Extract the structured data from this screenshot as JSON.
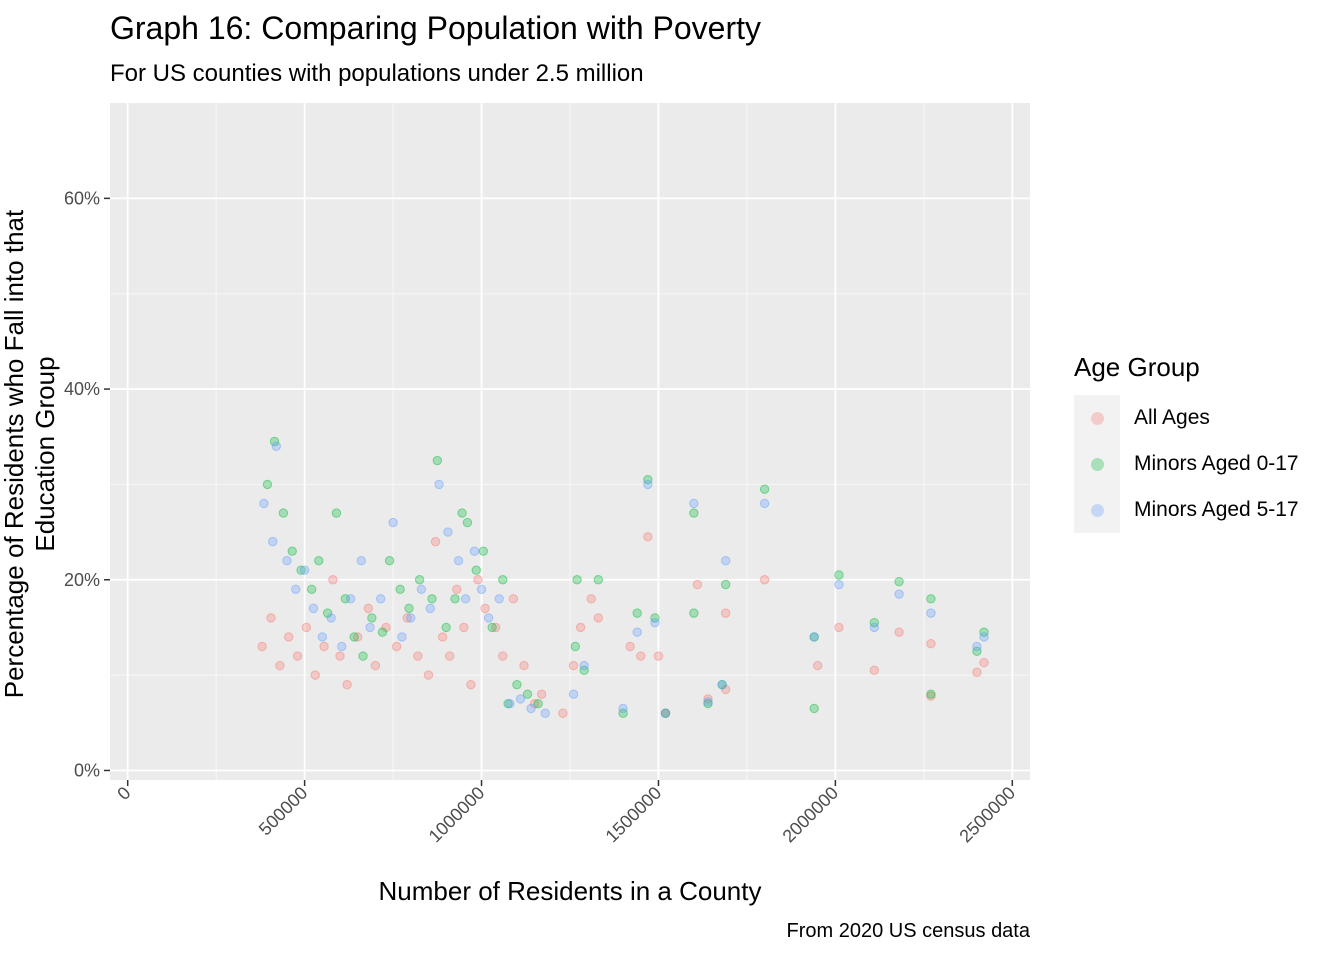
{
  "chart_data": {
    "type": "scatter",
    "title": "Graph 16: Comparing Population with Poverty",
    "subtitle": "For US counties with populations under 2.5 million",
    "xlabel": "Number of Residents in a County",
    "ylabel": "Percentage of Residents who Fall into that Education Group",
    "caption": "From 2020 US census data",
    "xlim": [
      -50000,
      2550000
    ],
    "ylim": [
      -0.01,
      0.7
    ],
    "x_ticks": [
      0,
      500000,
      1000000,
      1500000,
      2000000,
      2500000
    ],
    "x_tick_labels": [
      "0",
      "500000",
      "1000000",
      "1500000",
      "2000000",
      "2500000"
    ],
    "y_ticks": [
      0,
      0.2,
      0.4,
      0.6
    ],
    "y_tick_labels": [
      "0%",
      "20%",
      "40%",
      "60%"
    ],
    "grid": true,
    "legend": {
      "title": "Age Group",
      "placement": "right"
    },
    "series": [
      {
        "name": "All Ages",
        "color": "#F8766D",
        "points": [
          [
            380000,
            0.13
          ],
          [
            405000,
            0.16
          ],
          [
            430000,
            0.11
          ],
          [
            455000,
            0.14
          ],
          [
            480000,
            0.12
          ],
          [
            505000,
            0.15
          ],
          [
            530000,
            0.1
          ],
          [
            555000,
            0.13
          ],
          [
            580000,
            0.2
          ],
          [
            600000,
            0.12
          ],
          [
            620000,
            0.09
          ],
          [
            650000,
            0.14
          ],
          [
            680000,
            0.17
          ],
          [
            700000,
            0.11
          ],
          [
            730000,
            0.15
          ],
          [
            760000,
            0.13
          ],
          [
            790000,
            0.16
          ],
          [
            820000,
            0.12
          ],
          [
            850000,
            0.1
          ],
          [
            870000,
            0.24
          ],
          [
            890000,
            0.14
          ],
          [
            910000,
            0.12
          ],
          [
            930000,
            0.19
          ],
          [
            950000,
            0.15
          ],
          [
            970000,
            0.09
          ],
          [
            990000,
            0.2
          ],
          [
            1010000,
            0.17
          ],
          [
            1040000,
            0.15
          ],
          [
            1060000,
            0.12
          ],
          [
            1090000,
            0.18
          ],
          [
            1120000,
            0.11
          ],
          [
            1150000,
            0.07
          ],
          [
            1170000,
            0.08
          ],
          [
            1230000,
            0.06
          ],
          [
            1260000,
            0.11
          ],
          [
            1280000,
            0.15
          ],
          [
            1310000,
            0.18
          ],
          [
            1330000,
            0.16
          ],
          [
            1420000,
            0.13
          ],
          [
            1450000,
            0.12
          ],
          [
            1470000,
            0.245
          ],
          [
            1500000,
            0.12
          ],
          [
            1610000,
            0.195
          ],
          [
            1640000,
            0.075
          ],
          [
            1690000,
            0.165
          ],
          [
            1800000,
            0.2
          ],
          [
            1950000,
            0.11
          ],
          [
            2010000,
            0.15
          ],
          [
            2110000,
            0.105
          ],
          [
            2180000,
            0.145
          ],
          [
            2270000,
            0.133
          ],
          [
            2400000,
            0.103
          ],
          [
            2420000,
            0.113
          ],
          [
            2270000,
            0.078
          ],
          [
            1520000,
            0.06
          ],
          [
            1690000,
            0.085
          ]
        ]
      },
      {
        "name": "Minors Aged 0-17",
        "color": "#00BA38",
        "points": [
          [
            395000,
            0.3
          ],
          [
            415000,
            0.345
          ],
          [
            440000,
            0.27
          ],
          [
            465000,
            0.23
          ],
          [
            490000,
            0.21
          ],
          [
            520000,
            0.19
          ],
          [
            540000,
            0.22
          ],
          [
            565000,
            0.165
          ],
          [
            590000,
            0.27
          ],
          [
            615000,
            0.18
          ],
          [
            640000,
            0.14
          ],
          [
            665000,
            0.12
          ],
          [
            690000,
            0.16
          ],
          [
            720000,
            0.145
          ],
          [
            740000,
            0.22
          ],
          [
            770000,
            0.19
          ],
          [
            795000,
            0.17
          ],
          [
            825000,
            0.2
          ],
          [
            860000,
            0.18
          ],
          [
            875000,
            0.325
          ],
          [
            900000,
            0.15
          ],
          [
            925000,
            0.18
          ],
          [
            945000,
            0.27
          ],
          [
            960000,
            0.26
          ],
          [
            985000,
            0.21
          ],
          [
            1005000,
            0.23
          ],
          [
            1030000,
            0.15
          ],
          [
            1060000,
            0.2
          ],
          [
            1075000,
            0.07
          ],
          [
            1100000,
            0.09
          ],
          [
            1130000,
            0.08
          ],
          [
            1160000,
            0.07
          ],
          [
            1265000,
            0.13
          ],
          [
            1270000,
            0.2
          ],
          [
            1290000,
            0.105
          ],
          [
            1330000,
            0.2
          ],
          [
            1400000,
            0.06
          ],
          [
            1440000,
            0.165
          ],
          [
            1470000,
            0.305
          ],
          [
            1490000,
            0.16
          ],
          [
            1600000,
            0.27
          ],
          [
            1600000,
            0.165
          ],
          [
            1640000,
            0.07
          ],
          [
            1680000,
            0.09
          ],
          [
            1690000,
            0.195
          ],
          [
            1800000,
            0.295
          ],
          [
            1940000,
            0.14
          ],
          [
            2010000,
            0.205
          ],
          [
            2110000,
            0.155
          ],
          [
            2180000,
            0.198
          ],
          [
            2270000,
            0.18
          ],
          [
            2270000,
            0.08
          ],
          [
            2400000,
            0.125
          ],
          [
            2420000,
            0.145
          ],
          [
            1520000,
            0.06
          ],
          [
            1940000,
            0.065
          ]
        ]
      },
      {
        "name": "Minors Aged 5-17",
        "color": "#619CFF",
        "points": [
          [
            385000,
            0.28
          ],
          [
            410000,
            0.24
          ],
          [
            420000,
            0.34
          ],
          [
            450000,
            0.22
          ],
          [
            475000,
            0.19
          ],
          [
            500000,
            0.21
          ],
          [
            525000,
            0.17
          ],
          [
            550000,
            0.14
          ],
          [
            575000,
            0.16
          ],
          [
            605000,
            0.13
          ],
          [
            630000,
            0.18
          ],
          [
            660000,
            0.22
          ],
          [
            685000,
            0.15
          ],
          [
            715000,
            0.18
          ],
          [
            750000,
            0.26
          ],
          [
            775000,
            0.14
          ],
          [
            800000,
            0.16
          ],
          [
            830000,
            0.19
          ],
          [
            855000,
            0.17
          ],
          [
            880000,
            0.3
          ],
          [
            905000,
            0.25
          ],
          [
            935000,
            0.22
          ],
          [
            955000,
            0.18
          ],
          [
            980000,
            0.23
          ],
          [
            1000000,
            0.19
          ],
          [
            1020000,
            0.16
          ],
          [
            1050000,
            0.18
          ],
          [
            1080000,
            0.07
          ],
          [
            1110000,
            0.075
          ],
          [
            1140000,
            0.065
          ],
          [
            1180000,
            0.06
          ],
          [
            1260000,
            0.08
          ],
          [
            1290000,
            0.11
          ],
          [
            1400000,
            0.065
          ],
          [
            1440000,
            0.145
          ],
          [
            1470000,
            0.3
          ],
          [
            1490000,
            0.155
          ],
          [
            1600000,
            0.28
          ],
          [
            1640000,
            0.072
          ],
          [
            1680000,
            0.09
          ],
          [
            1690000,
            0.22
          ],
          [
            1800000,
            0.28
          ],
          [
            1940000,
            0.14
          ],
          [
            2010000,
            0.195
          ],
          [
            2110000,
            0.15
          ],
          [
            2180000,
            0.185
          ],
          [
            2270000,
            0.165
          ],
          [
            2400000,
            0.13
          ],
          [
            2420000,
            0.14
          ],
          [
            1520000,
            0.06
          ]
        ]
      }
    ]
  }
}
